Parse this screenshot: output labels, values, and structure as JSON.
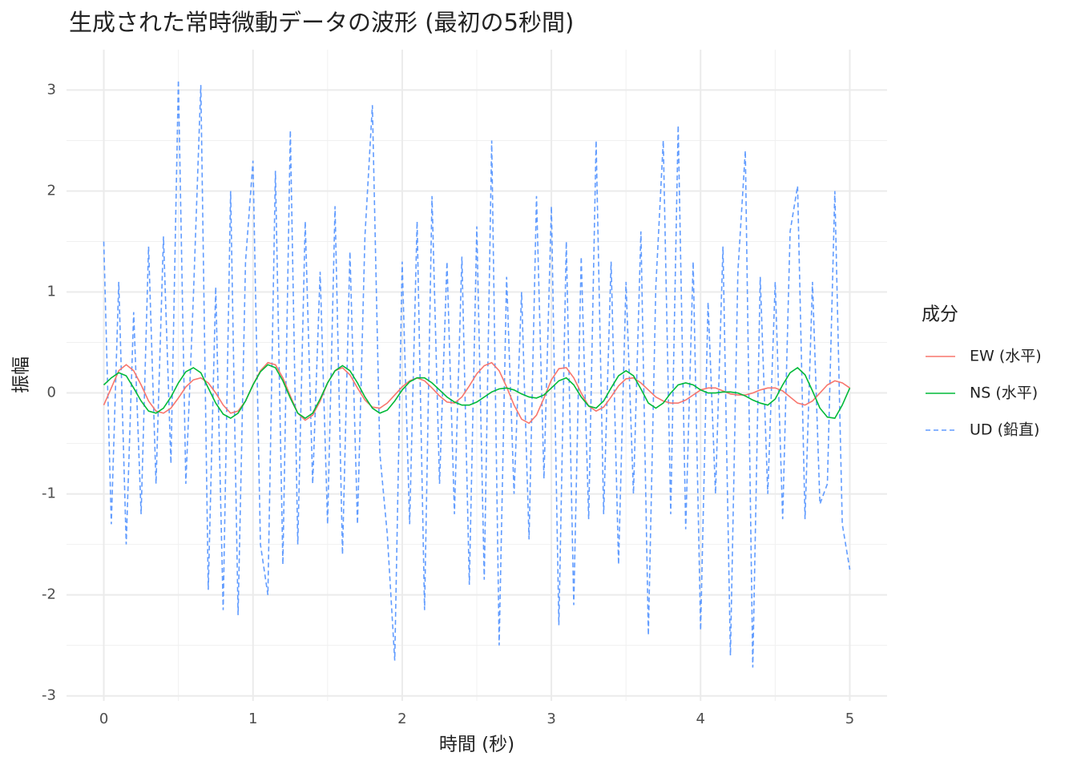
{
  "chart_data": {
    "type": "line",
    "title": "生成された常時微動データの波形 (最初の5秒間)",
    "x_label": "時間 (秒)",
    "y_label": "振幅",
    "legend_title": "成分",
    "legend": "right",
    "grid": true,
    "minor_grid": true,
    "xlim": [
      -0.25,
      5.25
    ],
    "xticks": [
      0,
      1,
      2,
      3,
      4,
      5
    ],
    "ylim": [
      -3.05,
      3.4
    ],
    "yticks": [
      -3,
      -2,
      -1,
      0,
      1,
      2,
      3
    ],
    "x": [
      0,
      0.05,
      0.1,
      0.15,
      0.2,
      0.25,
      0.3,
      0.35,
      0.4,
      0.45,
      0.5,
      0.55,
      0.6,
      0.65,
      0.7,
      0.75,
      0.8,
      0.85,
      0.9,
      0.95,
      1,
      1.05,
      1.1,
      1.15,
      1.2,
      1.25,
      1.3,
      1.35,
      1.4,
      1.45,
      1.5,
      1.55,
      1.6,
      1.65,
      1.7,
      1.75,
      1.8,
      1.85,
      1.9,
      1.95,
      2,
      2.05,
      2.1,
      2.15,
      2.2,
      2.25,
      2.3,
      2.35,
      2.4,
      2.45,
      2.5,
      2.55,
      2.6,
      2.65,
      2.7,
      2.75,
      2.8,
      2.85,
      2.9,
      2.95,
      3,
      3.05,
      3.1,
      3.15,
      3.2,
      3.25,
      3.3,
      3.35,
      3.4,
      3.45,
      3.5,
      3.55,
      3.6,
      3.65,
      3.7,
      3.75,
      3.8,
      3.85,
      3.9,
      3.95,
      4,
      4.05,
      4.1,
      4.15,
      4.2,
      4.25,
      4.3,
      4.35,
      4.4,
      4.45,
      4.5,
      4.55,
      4.6,
      4.65,
      4.7,
      4.75,
      4.8,
      4.85,
      4.9,
      4.95,
      5
    ],
    "series": [
      {
        "name": "EW (水平)",
        "color": "#F8766D",
        "dash": "solid",
        "values": [
          -0.12,
          0.05,
          0.22,
          0.28,
          0.22,
          0.08,
          -0.08,
          -0.18,
          -0.2,
          -0.15,
          -0.05,
          0.06,
          0.13,
          0.15,
          0.1,
          0,
          -0.12,
          -0.2,
          -0.18,
          -0.08,
          0.08,
          0.22,
          0.3,
          0.28,
          0.15,
          -0.03,
          -0.2,
          -0.27,
          -0.22,
          -0.08,
          0.1,
          0.22,
          0.25,
          0.18,
          0.05,
          -0.07,
          -0.14,
          -0.15,
          -0.1,
          -0.02,
          0.06,
          0.12,
          0.15,
          0.12,
          0.05,
          -0.03,
          -0.09,
          -0.1,
          -0.04,
          0.07,
          0.19,
          0.27,
          0.3,
          0.22,
          0.06,
          -0.12,
          -0.26,
          -0.3,
          -0.22,
          -0.05,
          0.13,
          0.24,
          0.25,
          0.15,
          0,
          -0.13,
          -0.18,
          -0.14,
          -0.04,
          0.07,
          0.14,
          0.15,
          0.1,
          0.03,
          -0.04,
          -0.08,
          -0.1,
          -0.1,
          -0.07,
          -0.02,
          0.03,
          0.05,
          0.05,
          0.02,
          -0.01,
          -0.02,
          -0.02,
          0,
          0.03,
          0.05,
          0.05,
          0.02,
          -0.04,
          -0.1,
          -0.12,
          -0.08,
          0,
          0.08,
          0.12,
          0.1,
          0.05
        ]
      },
      {
        "name": "NS (水平)",
        "color": "#00BA38",
        "dash": "solid",
        "values": [
          0.08,
          0.15,
          0.2,
          0.17,
          0.05,
          -0.08,
          -0.18,
          -0.2,
          -0.15,
          -0.04,
          0.1,
          0.21,
          0.25,
          0.2,
          0.05,
          -0.1,
          -0.21,
          -0.25,
          -0.2,
          -0.08,
          0.08,
          0.21,
          0.28,
          0.25,
          0.12,
          -0.05,
          -0.2,
          -0.25,
          -0.2,
          -0.06,
          0.1,
          0.22,
          0.27,
          0.22,
          0.1,
          -0.04,
          -0.15,
          -0.2,
          -0.17,
          -0.08,
          0.03,
          0.11,
          0.15,
          0.15,
          0.1,
          0.03,
          -0.04,
          -0.09,
          -0.12,
          -0.12,
          -0.09,
          -0.04,
          0.01,
          0.04,
          0.05,
          0.03,
          -0.01,
          -0.04,
          -0.05,
          -0.02,
          0.05,
          0.12,
          0.15,
          0.08,
          -0.04,
          -0.13,
          -0.15,
          -0.08,
          0.05,
          0.17,
          0.22,
          0.17,
          0.04,
          -0.1,
          -0.15,
          -0.1,
          0,
          0.08,
          0.1,
          0.08,
          0.03,
          0,
          0,
          0.01,
          0.01,
          0,
          -0.03,
          -0.07,
          -0.1,
          -0.12,
          -0.06,
          0.08,
          0.2,
          0.25,
          0.18,
          0.02,
          -0.15,
          -0.24,
          -0.25,
          -0.12,
          0.05
        ]
      },
      {
        "name": "UD (鉛直)",
        "color": "#619CFF",
        "dash": "dashed",
        "values": [
          1.5,
          -1.3,
          1.1,
          -1.5,
          0.8,
          -1.2,
          1.45,
          -0.9,
          1.55,
          -0.7,
          3.1,
          -0.9,
          0.95,
          3.05,
          -1.95,
          1.05,
          -2.15,
          2,
          -2.2,
          1.3,
          2.3,
          -1.5,
          -2,
          2.2,
          -1.7,
          2.6,
          -1.5,
          1.7,
          -0.9,
          1.2,
          -1.3,
          1.85,
          -1.6,
          1.4,
          -1.3,
          1.55,
          2.85,
          -0.6,
          -1.4,
          -2.65,
          1.3,
          -1.3,
          1.7,
          -2.15,
          1.95,
          -0.9,
          1.3,
          -1.2,
          1.35,
          -1.9,
          1.65,
          -1.85,
          2.5,
          -2.5,
          1.15,
          -1,
          1,
          -1.45,
          1.95,
          -0.85,
          1.85,
          -2.3,
          1.5,
          -2.1,
          1.35,
          -1.25,
          2.5,
          -1.2,
          1.3,
          -1.7,
          1.1,
          -1,
          1.6,
          -2.4,
          1.05,
          2.5,
          -1.2,
          2.65,
          -1.35,
          1.3,
          -2.35,
          0.9,
          -1,
          1.45,
          -2.6,
          1.2,
          2.4,
          -2.72,
          1.15,
          -1,
          1.1,
          -1.25,
          1.6,
          2.05,
          -1.25,
          1.1,
          -1.1,
          -0.9,
          2,
          -1.3,
          -1.75
        ]
      }
    ]
  }
}
